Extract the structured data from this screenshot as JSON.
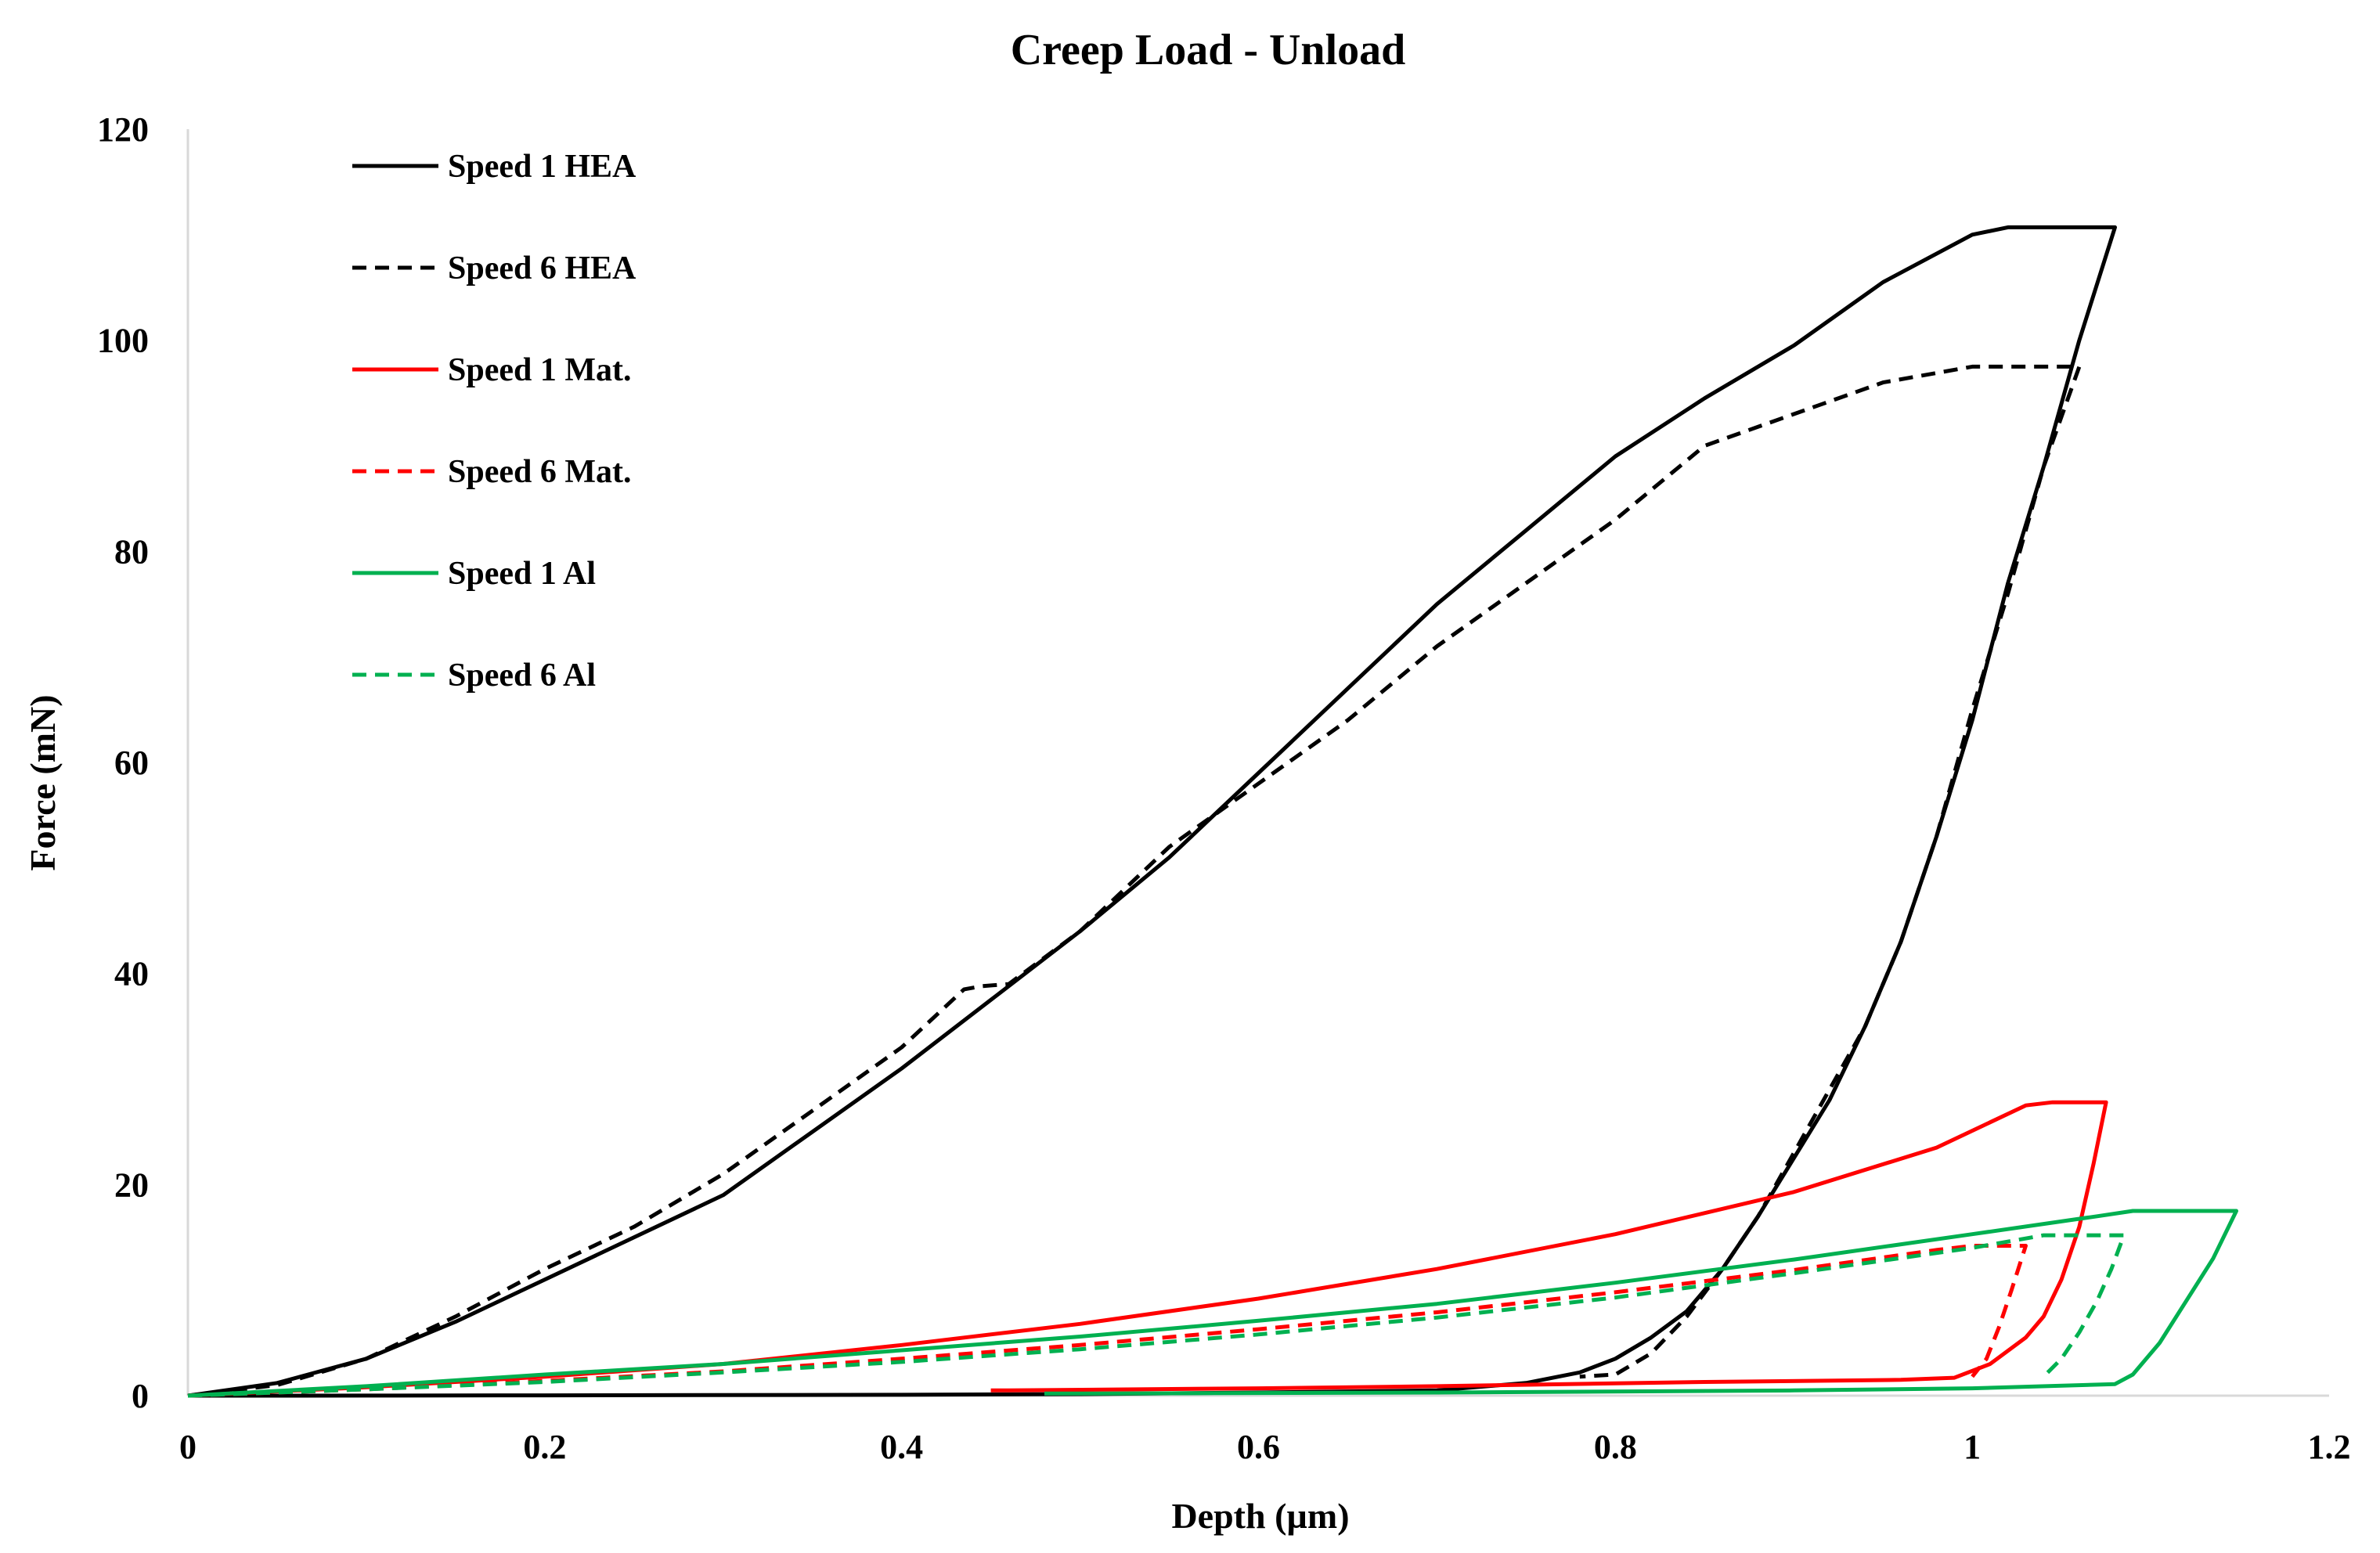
{
  "chart_data": {
    "type": "line",
    "title": "Creep Load - Unload",
    "xlabel": "Depth (µm)",
    "ylabel": "Force (mN)",
    "xlim": [
      0,
      1.2
    ],
    "ylim": [
      0,
      120
    ],
    "xticks": [
      0,
      0.2,
      0.4,
      0.6,
      0.8,
      1,
      1.2
    ],
    "xtick_labels": [
      "0",
      "0.2",
      "0.4",
      "0.6",
      "0.8",
      "1",
      "1.2"
    ],
    "yticks": [
      0,
      20,
      40,
      60,
      80,
      100,
      120
    ],
    "ytick_labels": [
      "0",
      "20",
      "40",
      "60",
      "80",
      "100",
      "120"
    ],
    "grid": false,
    "legend_position": "top-left",
    "series": [
      {
        "name": "Speed 1 HEA",
        "color": "#000000",
        "dash": "solid",
        "points": [
          [
            0,
            0
          ],
          [
            0.05,
            1.2
          ],
          [
            0.1,
            3.5
          ],
          [
            0.15,
            7
          ],
          [
            0.2,
            11
          ],
          [
            0.25,
            15
          ],
          [
            0.3,
            19
          ],
          [
            0.35,
            25
          ],
          [
            0.4,
            31
          ],
          [
            0.45,
            37.5
          ],
          [
            0.5,
            44
          ],
          [
            0.55,
            51
          ],
          [
            0.6,
            59
          ],
          [
            0.65,
            67
          ],
          [
            0.7,
            75
          ],
          [
            0.75,
            82
          ],
          [
            0.8,
            89
          ],
          [
            0.85,
            94.5
          ],
          [
            0.9,
            99.5
          ],
          [
            0.95,
            105.5
          ],
          [
            1.0,
            110
          ],
          [
            1.02,
            110.7
          ],
          [
            1.08,
            110.7
          ],
          [
            1.06,
            100
          ],
          [
            1.04,
            88
          ],
          [
            1.02,
            77
          ],
          [
            1.0,
            64
          ],
          [
            0.98,
            53
          ],
          [
            0.96,
            43
          ],
          [
            0.94,
            35
          ],
          [
            0.92,
            28
          ],
          [
            0.9,
            22.5
          ],
          [
            0.88,
            17
          ],
          [
            0.86,
            12
          ],
          [
            0.84,
            8
          ],
          [
            0.82,
            5.5
          ],
          [
            0.8,
            3.5
          ],
          [
            0.78,
            2.2
          ],
          [
            0.75,
            1.2
          ],
          [
            0.7,
            0.5
          ],
          [
            0.6,
            0.3
          ],
          [
            0.5,
            0.15
          ],
          [
            0.4,
            0.08
          ],
          [
            0.2,
            0.03
          ],
          [
            0.1,
            0.01
          ],
          [
            0,
            0
          ]
        ]
      },
      {
        "name": "Speed 6 HEA",
        "color": "#000000",
        "dash": "dashed",
        "points": [
          [
            0,
            0
          ],
          [
            0.05,
            1
          ],
          [
            0.1,
            3.5
          ],
          [
            0.15,
            7.5
          ],
          [
            0.2,
            12
          ],
          [
            0.25,
            16
          ],
          [
            0.3,
            21
          ],
          [
            0.35,
            27
          ],
          [
            0.4,
            33
          ],
          [
            0.435,
            38.5
          ],
          [
            0.445,
            38.8
          ],
          [
            0.46,
            39
          ],
          [
            0.5,
            44
          ],
          [
            0.55,
            52
          ],
          [
            0.6,
            58
          ],
          [
            0.65,
            64
          ],
          [
            0.7,
            71
          ],
          [
            0.75,
            77
          ],
          [
            0.8,
            83
          ],
          [
            0.85,
            90
          ],
          [
            0.9,
            93
          ],
          [
            0.95,
            96
          ],
          [
            1.0,
            97.5
          ],
          [
            1.06,
            97.5
          ],
          [
            1.04,
            88
          ],
          [
            1.02,
            76
          ],
          [
            1.0,
            65
          ],
          [
            0.98,
            53
          ],
          [
            0.96,
            43
          ],
          [
            0.94,
            35
          ],
          [
            0.92,
            29
          ],
          [
            0.9,
            23
          ],
          [
            0.88,
            17
          ],
          [
            0.86,
            12
          ],
          [
            0.84,
            7.5
          ],
          [
            0.82,
            4
          ],
          [
            0.8,
            2
          ],
          [
            0.78,
            1.8
          ]
        ]
      },
      {
        "name": "Speed 1 Mat.",
        "color": "#ff0000",
        "dash": "solid",
        "points": [
          [
            0,
            0
          ],
          [
            0.1,
            0.8
          ],
          [
            0.2,
            1.8
          ],
          [
            0.3,
            3
          ],
          [
            0.4,
            4.8
          ],
          [
            0.5,
            6.8
          ],
          [
            0.6,
            9.2
          ],
          [
            0.7,
            12
          ],
          [
            0.8,
            15.3
          ],
          [
            0.9,
            19.3
          ],
          [
            0.98,
            23.5
          ],
          [
            1.03,
            27.5
          ],
          [
            1.045,
            27.8
          ],
          [
            1.075,
            27.8
          ],
          [
            1.068,
            22
          ],
          [
            1.06,
            16
          ],
          [
            1.05,
            11
          ],
          [
            1.04,
            7.5
          ],
          [
            1.03,
            5.5
          ],
          [
            1.01,
            3
          ],
          [
            0.99,
            1.7
          ],
          [
            0.96,
            1.5
          ],
          [
            0.85,
            1.3
          ],
          [
            0.7,
            0.9
          ],
          [
            0.6,
            0.7
          ],
          [
            0.46,
            0.5
          ],
          [
            0.45,
            0.5
          ]
        ]
      },
      {
        "name": "Speed 6 Mat.",
        "color": "#ff0000",
        "dash": "dashed",
        "points": [
          [
            0,
            0
          ],
          [
            0.1,
            0.6
          ],
          [
            0.2,
            1.4
          ],
          [
            0.3,
            2.3
          ],
          [
            0.4,
            3.5
          ],
          [
            0.5,
            4.8
          ],
          [
            0.6,
            6.3
          ],
          [
            0.7,
            7.9
          ],
          [
            0.8,
            9.8
          ],
          [
            0.9,
            11.9
          ],
          [
            0.98,
            13.8
          ],
          [
            1.0,
            14.2
          ],
          [
            1.03,
            14.2
          ],
          [
            1.022,
            10
          ],
          [
            1.015,
            6.5
          ],
          [
            1.008,
            3.5
          ],
          [
            1.0,
            1.8
          ]
        ]
      },
      {
        "name": "Speed 1 Al",
        "color": "#00b050",
        "dash": "solid",
        "points": [
          [
            0,
            0
          ],
          [
            0.1,
            0.9
          ],
          [
            0.2,
            2
          ],
          [
            0.3,
            3
          ],
          [
            0.4,
            4.3
          ],
          [
            0.5,
            5.6
          ],
          [
            0.6,
            7.1
          ],
          [
            0.7,
            8.7
          ],
          [
            0.8,
            10.7
          ],
          [
            0.9,
            12.9
          ],
          [
            1.0,
            15.3
          ],
          [
            1.07,
            17
          ],
          [
            1.09,
            17.5
          ],
          [
            1.148,
            17.5
          ],
          [
            1.135,
            13
          ],
          [
            1.12,
            9
          ],
          [
            1.105,
            5
          ],
          [
            1.09,
            2
          ],
          [
            1.08,
            1.1
          ],
          [
            1.0,
            0.7
          ],
          [
            0.9,
            0.5
          ],
          [
            0.7,
            0.3
          ],
          [
            0.5,
            0.2
          ],
          [
            0.48,
            0.2
          ]
        ]
      },
      {
        "name": "Speed 6 Al",
        "color": "#00b050",
        "dash": "dashed",
        "points": [
          [
            0,
            0
          ],
          [
            0.1,
            0.6
          ],
          [
            0.2,
            1.3
          ],
          [
            0.3,
            2.2
          ],
          [
            0.4,
            3.2
          ],
          [
            0.5,
            4.4
          ],
          [
            0.6,
            5.8
          ],
          [
            0.7,
            7.4
          ],
          [
            0.8,
            9.3
          ],
          [
            0.9,
            11.6
          ],
          [
            1.0,
            14
          ],
          [
            1.04,
            15.2
          ],
          [
            1.085,
            15.2
          ],
          [
            1.078,
            12
          ],
          [
            1.07,
            9
          ],
          [
            1.06,
            6
          ],
          [
            1.05,
            3.5
          ],
          [
            1.04,
            1.8
          ]
        ]
      }
    ]
  }
}
